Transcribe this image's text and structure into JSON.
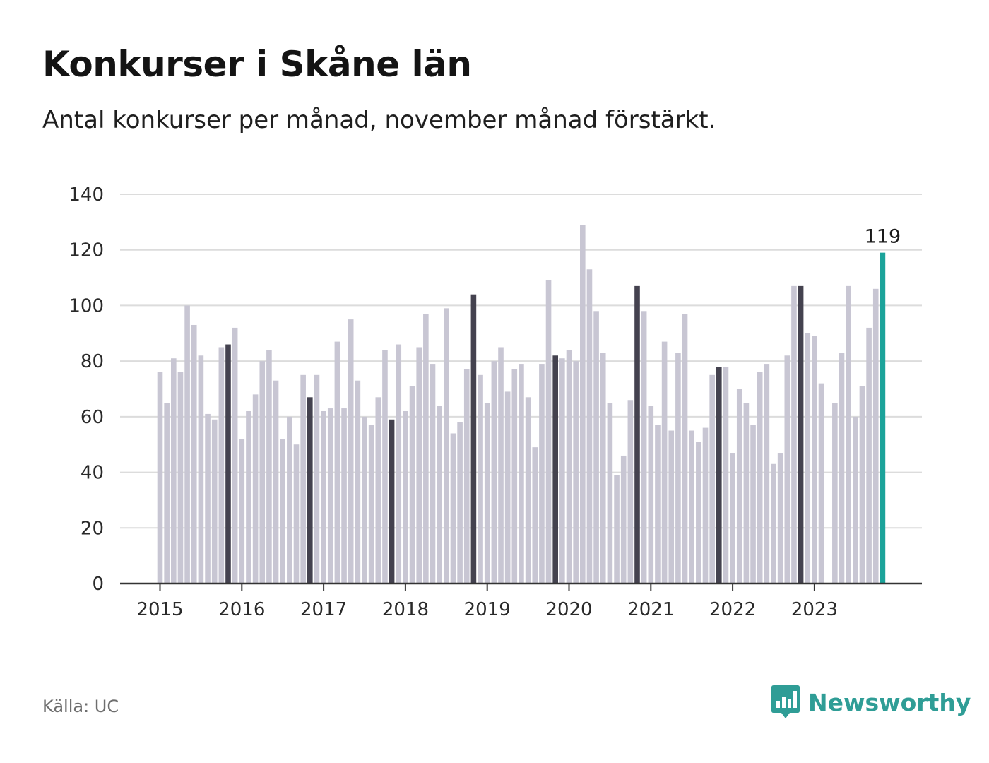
{
  "title": "Konkurser i Skåne län",
  "subtitle": "Antal konkurser per månad, november månad förstärkt.",
  "source": "Källa: UC",
  "brand": "Newsworthy",
  "colors": {
    "bar": "#c8c6d3",
    "highlight": "#44424f",
    "current": "#1ba39a",
    "grid": "#dcdcdc",
    "axis": "#333333",
    "brand": "#2f9d96"
  },
  "chart_data": {
    "type": "bar",
    "title": "Konkurser i Skåne län",
    "subtitle": "Antal konkurser per månad, november månad förstärkt.",
    "xlabel": "",
    "ylabel": "",
    "ylim": [
      0,
      140
    ],
    "yticks": [
      0,
      20,
      40,
      60,
      80,
      100,
      120,
      140
    ],
    "x_tick_labels": [
      "2015",
      "2016",
      "2017",
      "2018",
      "2019",
      "2020",
      "2021",
      "2022",
      "2023"
    ],
    "highlight_month": "november",
    "grid": true,
    "annotation": {
      "label": "119",
      "month": "2023-11"
    },
    "start_month": "2015-01",
    "end_month": "2023-11",
    "values": [
      76,
      65,
      81,
      76,
      100,
      93,
      82,
      61,
      59,
      85,
      86,
      92,
      52,
      62,
      68,
      80,
      84,
      73,
      52,
      60,
      50,
      75,
      67,
      75,
      62,
      63,
      87,
      63,
      95,
      73,
      60,
      57,
      67,
      84,
      59,
      86,
      62,
      71,
      85,
      97,
      79,
      64,
      99,
      54,
      58,
      77,
      104,
      75,
      65,
      80,
      85,
      69,
      77,
      79,
      67,
      49,
      79,
      109,
      82,
      81,
      84,
      80,
      129,
      113,
      98,
      83,
      65,
      39,
      46,
      66,
      107,
      98,
      64,
      57,
      87,
      55,
      83,
      97,
      55,
      51,
      56,
      75,
      78,
      78,
      47,
      70,
      65,
      57,
      76,
      79,
      43,
      47,
      82,
      107,
      107,
      90,
      89,
      72,
      0,
      65,
      83,
      107,
      60,
      71,
      92,
      106,
      119
    ]
  }
}
